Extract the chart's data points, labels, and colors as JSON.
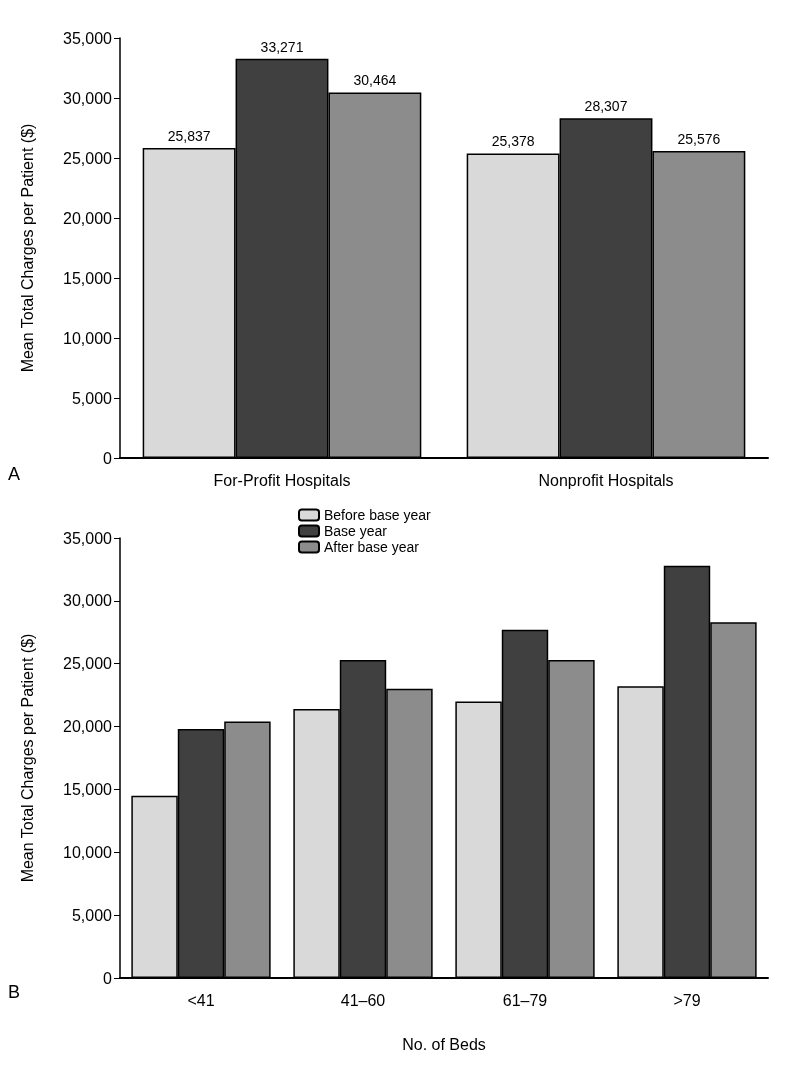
{
  "chart_data": [
    {
      "type": "bar",
      "ylabel": "Mean Total Charges per Patient ($)",
      "categories": [
        "For-Profit Hospitals",
        "Nonprofit Hospitals"
      ],
      "series": [
        {
          "color": "#d9d9d9",
          "values": [
            25837,
            25378
          ],
          "value_labels": [
            "25,837",
            "25,378"
          ]
        },
        {
          "color": "#404040",
          "values": [
            33271,
            28307
          ],
          "value_labels": [
            "33,271",
            "28,307"
          ]
        },
        {
          "color": "#8c8c8c",
          "values": [
            30464,
            25576
          ],
          "value_labels": [
            "30,464",
            "25,576"
          ]
        }
      ],
      "ylim": [
        0,
        35000
      ],
      "yticks": [
        0,
        {
          "value": 5000,
          "label": "5,000"
        },
        {
          "value": 10000,
          "label": "10,000"
        },
        {
          "value": 15000,
          "label": "15,000"
        },
        {
          "value": 20000,
          "label": "20,000"
        },
        {
          "value": 25000,
          "label": "25,000"
        },
        {
          "value": 30000,
          "label": "30,000"
        },
        {
          "value": 35000,
          "label": "35,000"
        }
      ],
      "grid": false,
      "legend": false,
      "annotations": [
        "A"
      ]
    },
    {
      "type": "bar",
      "ylabel": "Mean Total Charges per Patient ($)",
      "xlabel": "No. of Beds",
      "categories": [
        "<41",
        "41–60",
        "61–79",
        ">79"
      ],
      "series": [
        {
          "name": "Before base year",
          "color": "#d9d9d9",
          "values": [
            14500,
            21400,
            22000,
            23200
          ]
        },
        {
          "name": "Base year",
          "color": "#404040",
          "values": [
            19800,
            25300,
            27700,
            32800
          ]
        },
        {
          "name": "After base year",
          "color": "#8c8c8c",
          "values": [
            20400,
            23000,
            25300,
            28300
          ]
        }
      ],
      "ylim": [
        0,
        35000
      ],
      "yticks": [
        0,
        {
          "value": 5000,
          "label": "5,000"
        },
        {
          "value": 10000,
          "label": "10,000"
        },
        {
          "value": 15000,
          "label": "15,000"
        },
        {
          "value": 20000,
          "label": "20,000"
        },
        {
          "value": 25000,
          "label": "25,000"
        },
        {
          "value": 30000,
          "label": "30,000"
        },
        {
          "value": 35000,
          "label": "35,000"
        }
      ],
      "grid": false,
      "legend": "top",
      "annotations": [
        "B"
      ]
    }
  ]
}
